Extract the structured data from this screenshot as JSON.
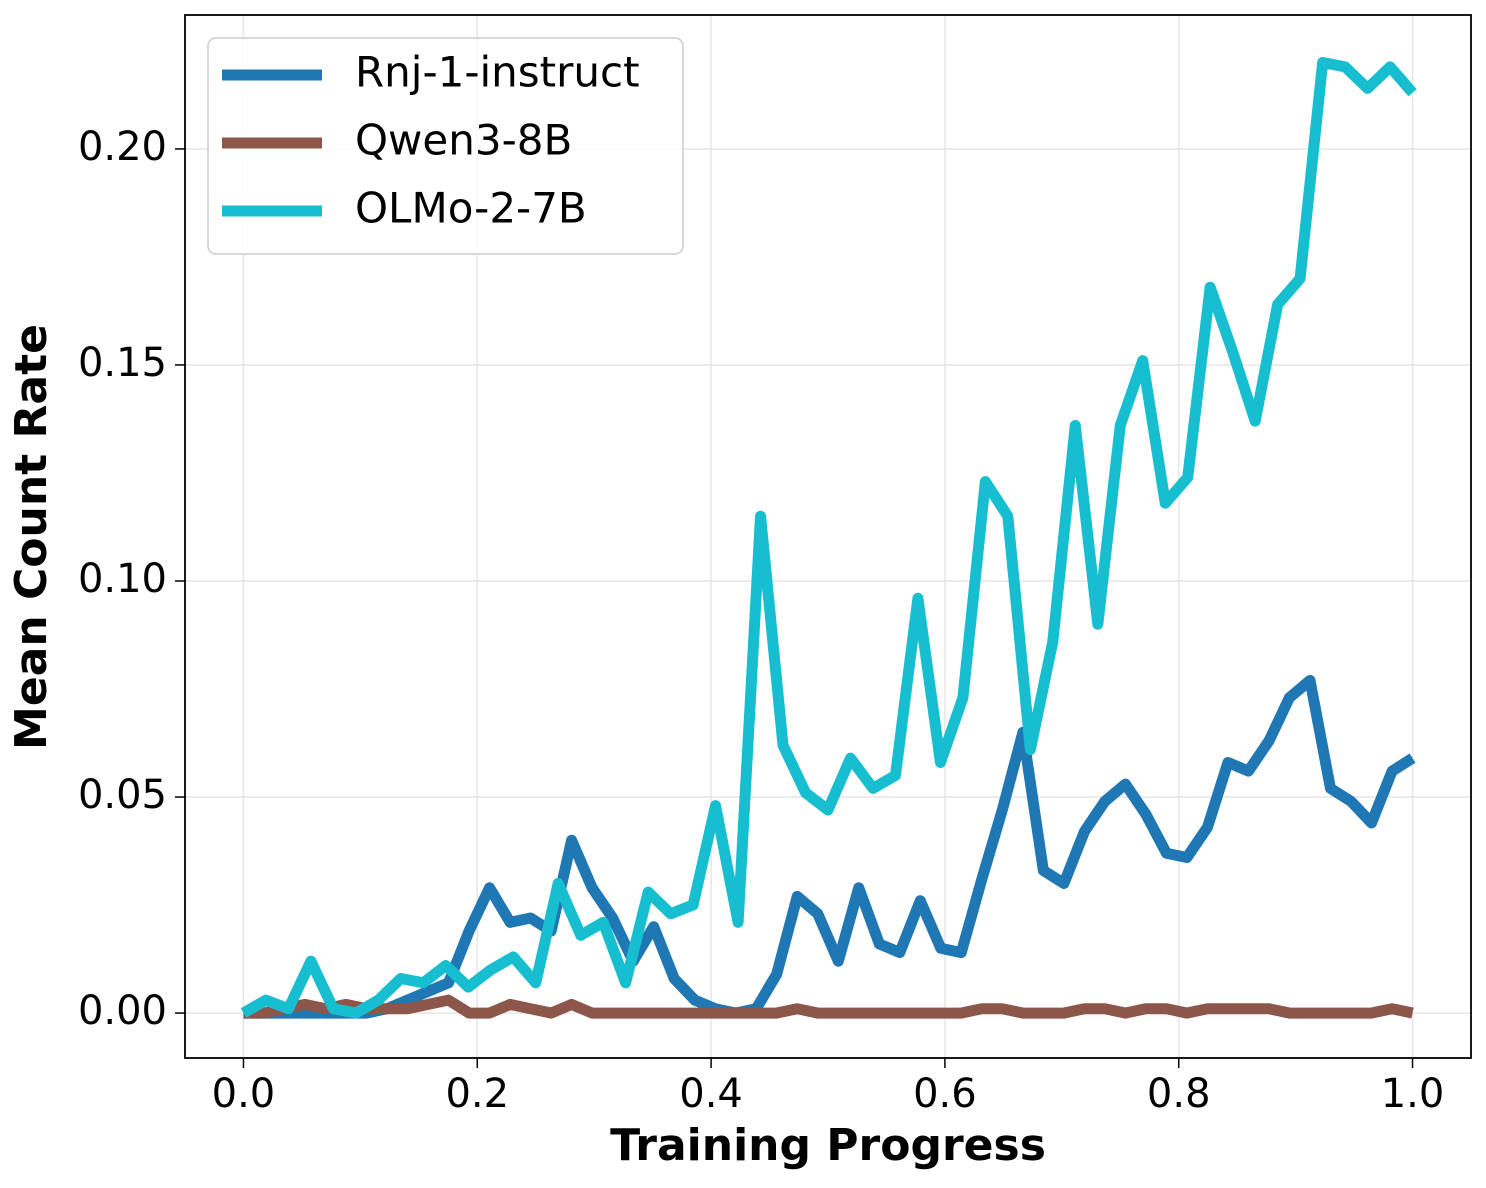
{
  "chart_data": {
    "type": "line",
    "xlabel": "Training Progress",
    "ylabel": "Mean Count Rate",
    "xlim": [
      -0.05,
      1.05
    ],
    "ylim": [
      -0.0104,
      0.231
    ],
    "xticks": [
      {
        "value": 0,
        "label": "0.0"
      },
      0.2,
      0.4,
      0.6,
      0.8,
      {
        "value": 1,
        "label": "1.0"
      }
    ],
    "yticks": [
      {
        "value": 0,
        "label": "0.00"
      },
      {
        "value": 0.05,
        "label": "0.05"
      },
      {
        "value": 0.1,
        "label": "0.10"
      },
      {
        "value": 0.15,
        "label": "0.15"
      },
      {
        "value": 0.2,
        "label": "0.20"
      }
    ],
    "grid": true,
    "legend": "upper left",
    "series": [
      {
        "name": "Rnj-1-instruct",
        "color": "#1f77b4",
        "x": [
          0,
          0.0175,
          0.0351,
          0.0526,
          0.0702,
          0.0877,
          0.1053,
          0.1228,
          0.1404,
          0.1579,
          0.1754,
          0.193,
          0.2105,
          0.2281,
          0.2456,
          0.2632,
          0.2807,
          0.2982,
          0.3158,
          0.3333,
          0.3509,
          0.3684,
          0.386,
          0.4035,
          0.4211,
          0.4386,
          0.4561,
          0.4737,
          0.4912,
          0.5088,
          0.5263,
          0.5439,
          0.5614,
          0.5789,
          0.5965,
          0.614,
          0.6316,
          0.6491,
          0.6667,
          0.6842,
          0.7018,
          0.7193,
          0.7368,
          0.7544,
          0.7719,
          0.7895,
          0.807,
          0.8246,
          0.8421,
          0.8596,
          0.8772,
          0.8947,
          0.9123,
          0.9298,
          0.9474,
          0.9649,
          0.9825,
          1.0
        ],
        "values": [
          0,
          0,
          0,
          0,
          0,
          0,
          0,
          0.001,
          0.003,
          0.005,
          0.007,
          0.019,
          0.029,
          0.021,
          0.022,
          0.019,
          0.04,
          0.029,
          0.022,
          0.012,
          0.02,
          0.008,
          0.003,
          0.001,
          0,
          0.001,
          0.009,
          0.027,
          0.023,
          0.012,
          0.029,
          0.016,
          0.014,
          0.026,
          0.015,
          0.014,
          0.031,
          0.047,
          0.065,
          0.033,
          0.03,
          0.042,
          0.049,
          0.053,
          0.046,
          0.037,
          0.036,
          0.043,
          0.058,
          0.056,
          0.063,
          0.073,
          0.077,
          0.052,
          0.049,
          0.044,
          0.056,
          0.059
        ]
      },
      {
        "name": "Qwen3-8B",
        "color": "#8c564b",
        "x": [
          0,
          0.0175,
          0.0351,
          0.0526,
          0.0702,
          0.0877,
          0.1053,
          0.1228,
          0.1404,
          0.1579,
          0.1754,
          0.193,
          0.2105,
          0.2281,
          0.2456,
          0.2632,
          0.2807,
          0.2982,
          0.3158,
          0.3333,
          0.3509,
          0.3684,
          0.386,
          0.4035,
          0.4211,
          0.4386,
          0.4561,
          0.4737,
          0.4912,
          0.5088,
          0.5263,
          0.5439,
          0.5614,
          0.5789,
          0.5965,
          0.614,
          0.6316,
          0.6491,
          0.6667,
          0.6842,
          0.7018,
          0.7193,
          0.7368,
          0.7544,
          0.7719,
          0.7895,
          0.807,
          0.8246,
          0.8421,
          0.8596,
          0.8772,
          0.8947,
          0.9123,
          0.9298,
          0.9474,
          0.9649,
          0.9825,
          1.0
        ],
        "values": [
          0,
          0,
          0.001,
          0.002,
          0.001,
          0.002,
          0.001,
          0.001,
          0.001,
          0.002,
          0.003,
          0,
          0,
          0.002,
          0.001,
          0,
          0.002,
          0,
          0,
          0,
          0,
          0,
          0,
          0,
          0,
          0,
          0,
          0.001,
          0,
          0,
          0,
          0,
          0,
          0,
          0,
          0,
          0.001,
          0.001,
          0,
          0,
          0,
          0.001,
          0.001,
          0,
          0.001,
          0.001,
          0,
          0.001,
          0.001,
          0.001,
          0.001,
          0,
          0,
          0,
          0,
          0,
          0.001,
          0
        ]
      },
      {
        "name": "OLMo-2-7B",
        "color": "#17becf",
        "x": [
          0,
          0.0192,
          0.0385,
          0.0577,
          0.0769,
          0.0962,
          0.1154,
          0.1346,
          0.1538,
          0.1731,
          0.1923,
          0.2115,
          0.2308,
          0.25,
          0.2692,
          0.2885,
          0.3077,
          0.3269,
          0.3462,
          0.3654,
          0.3846,
          0.4038,
          0.4231,
          0.4423,
          0.4615,
          0.4808,
          0.5,
          0.5192,
          0.5385,
          0.5577,
          0.5769,
          0.5962,
          0.6154,
          0.6346,
          0.6538,
          0.6731,
          0.6923,
          0.7115,
          0.7308,
          0.75,
          0.7692,
          0.7885,
          0.8077,
          0.8269,
          0.8462,
          0.8654,
          0.8846,
          0.9038,
          0.9231,
          0.9423,
          0.9615,
          0.9808,
          1.0
        ],
        "values": [
          0,
          0.003,
          0.001,
          0.012,
          0.001,
          0,
          0.003,
          0.008,
          0.007,
          0.011,
          0.006,
          0.01,
          0.013,
          0.007,
          0.03,
          0.018,
          0.021,
          0.007,
          0.028,
          0.023,
          0.025,
          0.048,
          0.021,
          0.115,
          0.062,
          0.051,
          0.047,
          0.059,
          0.052,
          0.055,
          0.096,
          0.058,
          0.073,
          0.123,
          0.115,
          0.061,
          0.086,
          0.136,
          0.09,
          0.136,
          0.151,
          0.118,
          0.124,
          0.168,
          0.153,
          0.137,
          0.164,
          0.17,
          0.22,
          0.219,
          0.214,
          0.219,
          0.213
        ]
      }
    ]
  }
}
